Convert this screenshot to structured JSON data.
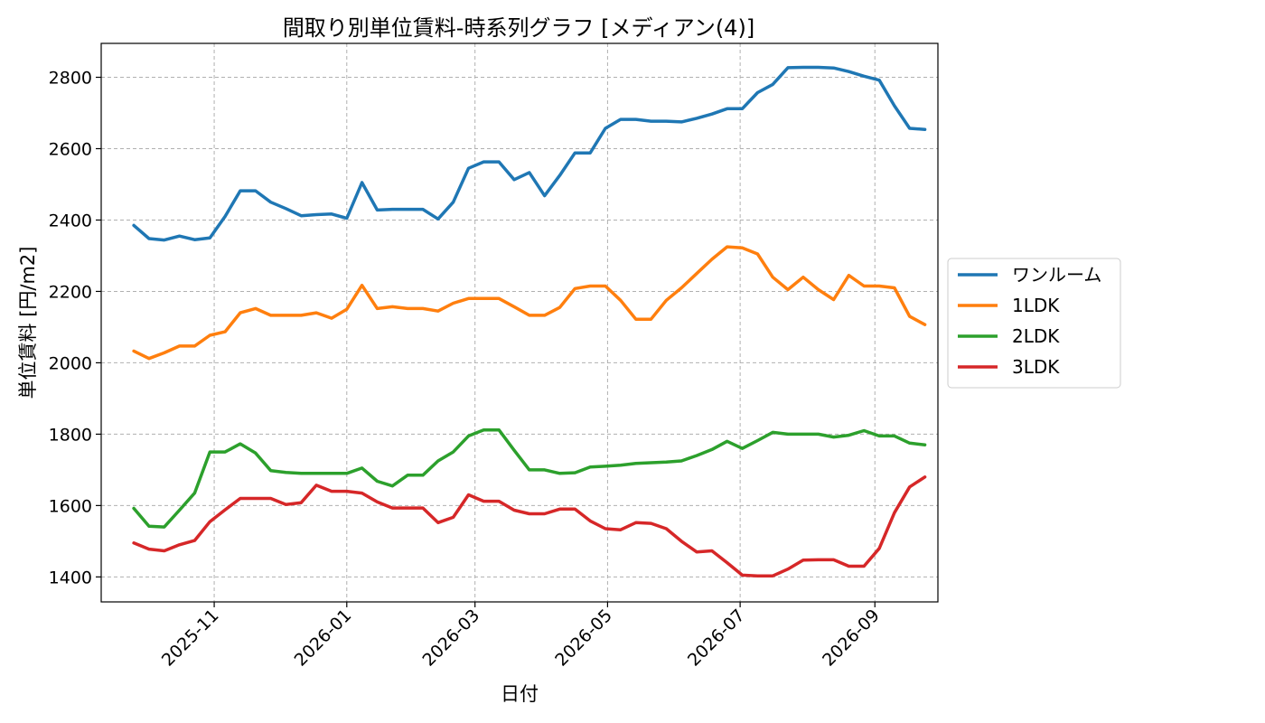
{
  "chart_data": {
    "type": "line",
    "title": "間取り別単位賃料-時系列グラフ [メディアン(4)]",
    "xlabel": "日付",
    "ylabel": "単位賃料 [円/m2]",
    "x_ticks": [
      "2025-11",
      "2026-01",
      "2026-03",
      "2026-05",
      "2026-07",
      "2026-09"
    ],
    "y_ticks": [
      1400,
      1600,
      1800,
      2000,
      2200,
      2400,
      2600,
      2800
    ],
    "ylim": [
      1330,
      2895
    ],
    "xlim": [
      "2025-09-10",
      "2026-09-30"
    ],
    "grid": true,
    "legend_position": "right-outside",
    "x": [
      "2025-09-25",
      "2025-10-02",
      "2025-10-09",
      "2025-10-16",
      "2025-10-23",
      "2025-10-30",
      "2025-11-06",
      "2025-11-13",
      "2025-11-20",
      "2025-11-27",
      "2025-12-04",
      "2025-12-11",
      "2025-12-18",
      "2025-12-25",
      "2026-01-01",
      "2026-01-08",
      "2026-01-15",
      "2026-01-22",
      "2026-01-29",
      "2026-02-05",
      "2026-02-12",
      "2026-02-19",
      "2026-02-26",
      "2026-03-05",
      "2026-03-12",
      "2026-03-19",
      "2026-03-26",
      "2026-04-02",
      "2026-04-09",
      "2026-04-16",
      "2026-04-23",
      "2026-04-30",
      "2026-05-07",
      "2026-05-14",
      "2026-05-21",
      "2026-05-28",
      "2026-06-04",
      "2026-06-11",
      "2026-06-18",
      "2026-06-25",
      "2026-07-02",
      "2026-07-09",
      "2026-07-16",
      "2026-07-23",
      "2026-07-30",
      "2026-08-06",
      "2026-08-13",
      "2026-08-20",
      "2026-08-27",
      "2026-09-03",
      "2026-09-10",
      "2026-09-17",
      "2026-09-24"
    ],
    "series": [
      {
        "name": "ワンルーム",
        "color": "#1f77b4",
        "values": [
          2385,
          2348,
          2344,
          2355,
          2345,
          2350,
          2410,
          2482,
          2482,
          2450,
          2432,
          2412,
          2415,
          2417,
          2405,
          2505,
          2428,
          2430,
          2430,
          2430,
          2403,
          2450,
          2545,
          2563,
          2563,
          2513,
          2533,
          2468,
          2525,
          2588,
          2588,
          2657,
          2682,
          2682,
          2677,
          2677,
          2675,
          2685,
          2697,
          2712,
          2712,
          2757,
          2780,
          2827,
          2828,
          2828,
          2826,
          2816,
          2803,
          2792,
          2720,
          2657,
          2654
        ]
      },
      {
        "name": "1LDK",
        "color": "#ff7f0e",
        "values": [
          2033,
          2012,
          2028,
          2047,
          2047,
          2077,
          2087,
          2140,
          2152,
          2133,
          2133,
          2133,
          2140,
          2125,
          2150,
          2217,
          2152,
          2157,
          2152,
          2152,
          2145,
          2167,
          2180,
          2180,
          2180,
          2157,
          2133,
          2133,
          2155,
          2208,
          2215,
          2215,
          2175,
          2122,
          2122,
          2175,
          2210,
          2250,
          2290,
          2325,
          2322,
          2305,
          2240,
          2205,
          2240,
          2205,
          2177,
          2245,
          2215,
          2215,
          2210,
          2130,
          2107
        ]
      },
      {
        "name": "2LDK",
        "color": "#2ca02c",
        "values": [
          1592,
          1542,
          1540,
          1587,
          1635,
          1750,
          1750,
          1773,
          1747,
          1698,
          1693,
          1690,
          1690,
          1690,
          1690,
          1705,
          1668,
          1655,
          1685,
          1685,
          1725,
          1750,
          1795,
          1812,
          1812,
          1755,
          1700,
          1700,
          1690,
          1692,
          1708,
          1710,
          1713,
          1718,
          1720,
          1722,
          1725,
          1740,
          1757,
          1780,
          1760,
          1782,
          1805,
          1800,
          1800,
          1800,
          1792,
          1797,
          1810,
          1795,
          1795,
          1775,
          1770
        ]
      },
      {
        "name": "3LDK",
        "color": "#d62728",
        "values": [
          1495,
          1478,
          1473,
          1490,
          1502,
          1555,
          1588,
          1620,
          1620,
          1620,
          1603,
          1608,
          1657,
          1640,
          1640,
          1635,
          1610,
          1593,
          1593,
          1593,
          1552,
          1567,
          1630,
          1612,
          1612,
          1587,
          1577,
          1577,
          1590,
          1590,
          1557,
          1535,
          1532,
          1552,
          1550,
          1535,
          1500,
          1470,
          1473,
          1440,
          1405,
          1403,
          1403,
          1422,
          1447,
          1448,
          1448,
          1430,
          1430,
          1480,
          1580,
          1652,
          1680
        ]
      }
    ]
  }
}
